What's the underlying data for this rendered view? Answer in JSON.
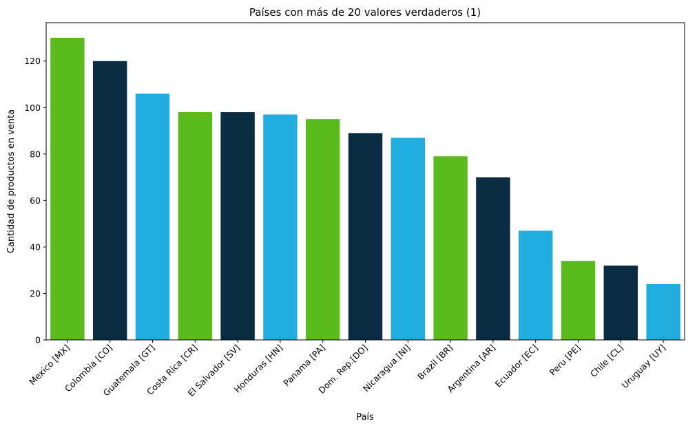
{
  "chart_data": {
    "type": "bar",
    "title": "Países con más de 20 valores verdaderos (1)",
    "xlabel": "País",
    "ylabel": "Cantidad de productos en venta",
    "categories": [
      "Mexico [MX]",
      "Colombia [CO]",
      "Guatemala [GT]",
      "Costa Rica [CR]",
      "El Salvador [SV]",
      "Honduras [HN]",
      "Panama [PA]",
      "Dom. Rep.[DO]",
      "Nicaragua [NI]",
      "Brazil [BR]",
      "Argentina [AR]",
      "Ecuador [EC]",
      "Peru [PE]",
      "Chile [CL]",
      "Uruguay [UY]"
    ],
    "values": [
      130,
      120,
      106,
      98,
      98,
      97,
      95,
      89,
      87,
      79,
      70,
      47,
      34,
      32,
      24
    ],
    "colors": [
      "#5bba1c",
      "#0a2d44",
      "#22addf"
    ],
    "ylim": [
      0,
      136.5
    ],
    "yticks": [
      0,
      20,
      40,
      60,
      80,
      100,
      120
    ],
    "grid": false,
    "legend": "none"
  }
}
